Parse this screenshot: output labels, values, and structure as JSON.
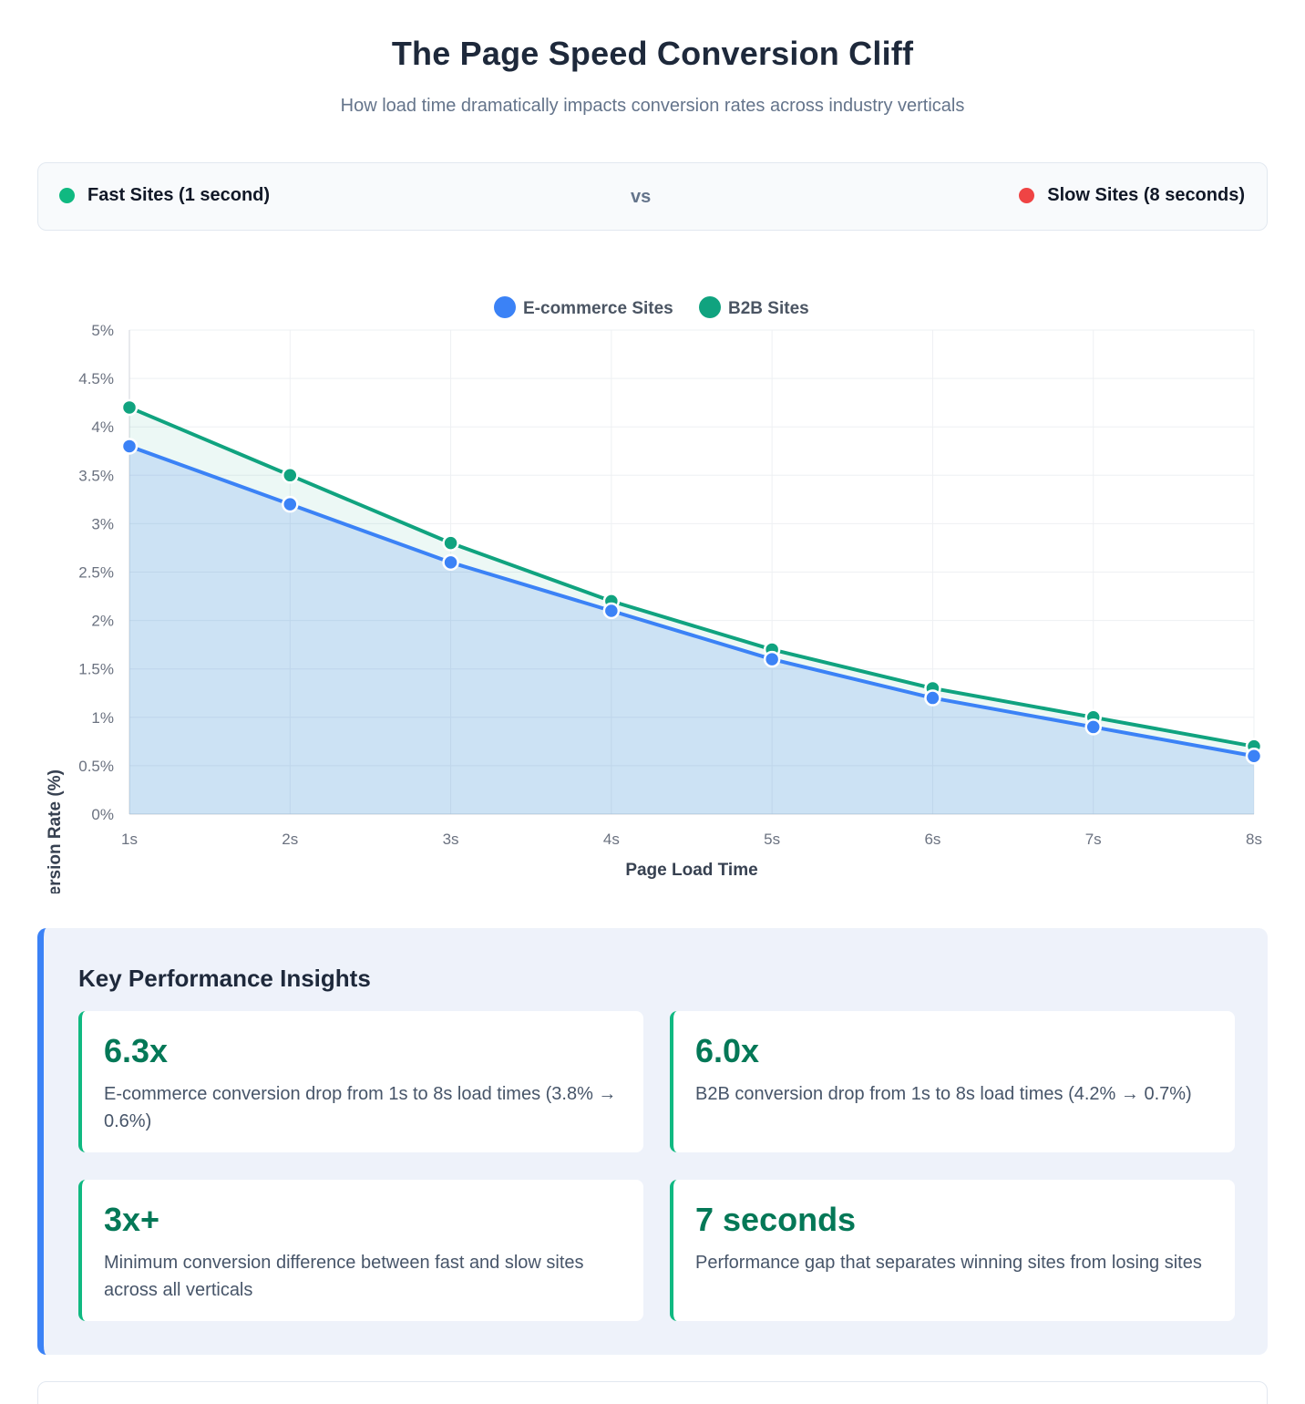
{
  "header": {
    "title": "The Page Speed Conversion Cliff",
    "subtitle": "How load time dramatically impacts conversion rates across industry verticals"
  },
  "comparison": {
    "fast_label": "Fast Sites (1 second)",
    "fast_color": "#10b981",
    "vs_label": "vs",
    "slow_label": "Slow Sites (8 seconds)",
    "slow_color": "#ef4444"
  },
  "chart_data": {
    "type": "line",
    "title": "",
    "xlabel": "Page Load Time",
    "ylabel": "Conversion Rate (%)",
    "categories": [
      "1s",
      "2s",
      "3s",
      "4s",
      "5s",
      "6s",
      "7s",
      "8s"
    ],
    "yticks": [
      "0%",
      "0.5%",
      "1%",
      "1.5%",
      "2%",
      "2.5%",
      "3%",
      "3.5%",
      "4%",
      "4.5%",
      "5%"
    ],
    "ylim": [
      0,
      5
    ],
    "grid": true,
    "legend_position": "top-center",
    "series": [
      {
        "name": "E-commerce Sites",
        "color": "#3b82f6",
        "fill": true,
        "values": [
          3.8,
          3.2,
          2.6,
          2.1,
          1.6,
          1.2,
          0.9,
          0.6
        ]
      },
      {
        "name": "B2B Sites",
        "color": "#10a37f",
        "fill": true,
        "values": [
          4.2,
          3.5,
          2.8,
          2.2,
          1.7,
          1.3,
          1.0,
          0.7
        ]
      }
    ]
  },
  "insights": {
    "title": "Key Performance Insights",
    "accent_color": "#3b82f6",
    "cards": [
      {
        "value": "6.3x",
        "desc": "E-commerce conversion drop from 1s to 8s load times (3.8% → 0.6%)"
      },
      {
        "value": "6.0x",
        "desc": "B2B conversion drop from 1s to 8s load times (4.2% → 0.7%)"
      },
      {
        "value": "3x+",
        "desc": "Minimum conversion difference between fast and slow sites across all verticals"
      },
      {
        "value": "7 seconds",
        "desc": "Performance gap that separates winning sites from losing sites"
      }
    ]
  }
}
